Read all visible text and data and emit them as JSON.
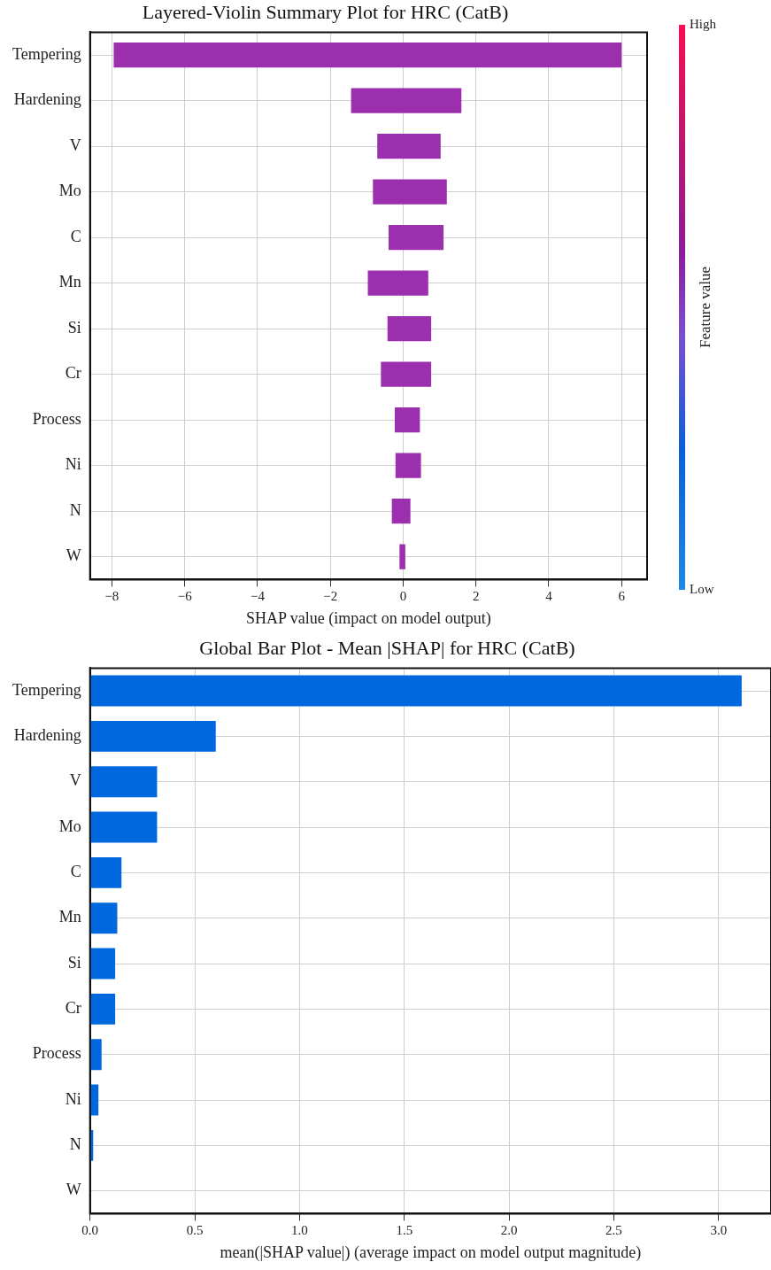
{
  "chart_data": [
    {
      "type": "bar",
      "orientation": "horizontal",
      "title": "Layered-Violin Summary Plot for HRC (CatB)",
      "xlabel": "SHAP value (impact on model output)",
      "categories": [
        "Tempering",
        "Hardening",
        "V",
        "Mo",
        "C",
        "Mn",
        "Si",
        "Cr",
        "Process",
        "Ni",
        "N",
        "W"
      ],
      "base": [
        -7.95,
        -1.43,
        -0.71,
        -0.83,
        -0.4,
        -0.97,
        -0.43,
        -0.61,
        -0.23,
        -0.21,
        -0.31,
        -0.1
      ],
      "values": [
        13.95,
        3.03,
        1.74,
        2.03,
        1.51,
        1.66,
        1.2,
        1.38,
        0.69,
        0.7,
        0.51,
        0.16
      ],
      "color": "#9b2fae",
      "xlim": [
        -8.6,
        6.7
      ],
      "xticks": [
        {
          "value": -8,
          "label": "−8"
        },
        {
          "value": -6,
          "label": "−6"
        },
        {
          "value": -4,
          "label": "−4"
        },
        {
          "value": -2,
          "label": "−2"
        },
        {
          "value": 0,
          "label": "0"
        },
        {
          "value": 2,
          "label": "2"
        },
        {
          "value": 4,
          "label": "4"
        },
        {
          "value": 6,
          "label": "6"
        }
      ],
      "grid": true,
      "clabel": "Feature value",
      "clim": [
        0,
        1
      ],
      "cticks": [
        {
          "value": 0,
          "label": "Low"
        },
        {
          "value": 1,
          "label": "High"
        }
      ]
    },
    {
      "type": "bar",
      "orientation": "horizontal",
      "title": "Global Bar Plot - Mean |SHAP| for HRC (CatB)",
      "xlabel": "mean(|SHAP value|) (average impact on model output magnitude)",
      "categories": [
        "Tempering",
        "Hardening",
        "V",
        "Mo",
        "C",
        "Mn",
        "Si",
        "Cr",
        "Process",
        "Ni",
        "N",
        "W"
      ],
      "values": [
        3.11,
        0.6,
        0.32,
        0.32,
        0.15,
        0.13,
        0.12,
        0.12,
        0.055,
        0.04,
        0.015,
        0
      ],
      "color": "#0068de",
      "xlim": [
        0,
        3.25
      ],
      "xticks": [
        {
          "value": 0,
          "label": "0.0"
        },
        {
          "value": 0.5,
          "label": "0.5"
        },
        {
          "value": 1,
          "label": "1.0"
        },
        {
          "value": 1.5,
          "label": "1.5"
        },
        {
          "value": 2,
          "label": "2.0"
        },
        {
          "value": 2.5,
          "label": "2.5"
        },
        {
          "value": 3,
          "label": "3.0"
        }
      ],
      "grid": true
    }
  ]
}
